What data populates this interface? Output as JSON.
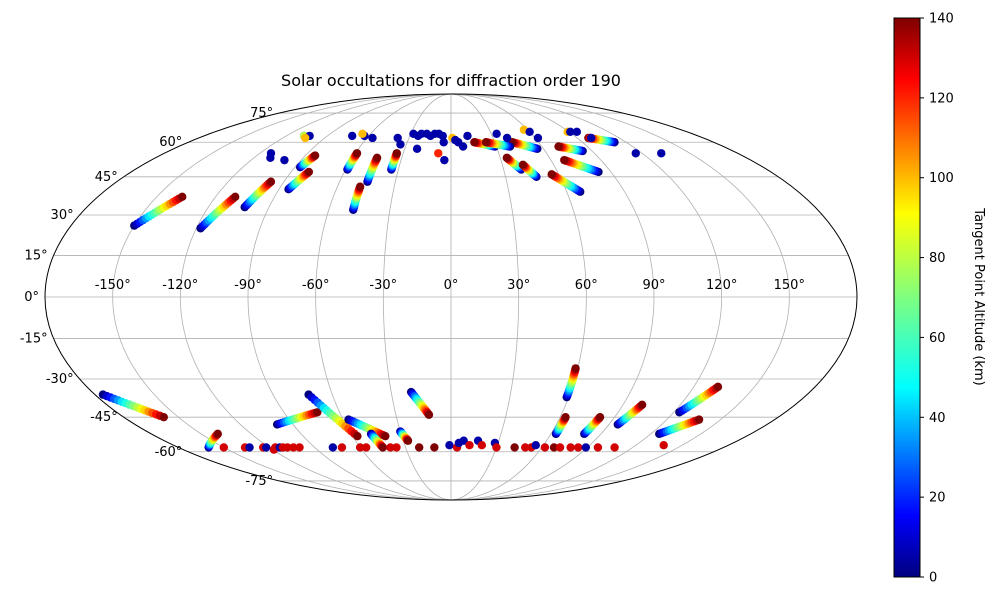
{
  "chart_data": {
    "type": "scatter",
    "projection": "mollweide",
    "title": "Solar occultations for diffraction order 190",
    "xlabel": "",
    "ylabel": "",
    "x_ticks": [
      -150,
      -120,
      -90,
      -60,
      -30,
      0,
      30,
      60,
      90,
      120,
      150
    ],
    "x_tick_labels": [
      "-150°",
      "-120°",
      "-90°",
      "-60°",
      "-30°",
      "0°",
      "30°",
      "60°",
      "90°",
      "120°",
      "150°"
    ],
    "y_ticks": [
      -75,
      -60,
      -45,
      -30,
      -15,
      0,
      15,
      30,
      45,
      60,
      75
    ],
    "y_tick_labels": [
      "-75°",
      "-60°",
      "-45°",
      "-30°",
      "-15°",
      "0°",
      "15°",
      "30°",
      "45°",
      "60°",
      "75°"
    ],
    "xlim": [
      -180,
      180
    ],
    "ylim": [
      -90,
      90
    ],
    "grid": true,
    "colormap": "jet",
    "colorbar": {
      "label": "Tangent Point Altitude (km)",
      "range": [
        0,
        140
      ],
      "ticks": [
        0,
        20,
        40,
        60,
        80,
        100,
        120,
        140
      ],
      "tick_labels": [
        "0",
        "20",
        "40",
        "60",
        "80",
        "100",
        "120",
        "140"
      ]
    },
    "tracks": [
      {
        "lon0": -150,
        "lat0": 26,
        "lon1": -137,
        "lat1": 37
      },
      {
        "lon0": -118,
        "lat0": 25,
        "lon1": -110,
        "lat1": 37
      },
      {
        "lon0": -102,
        "lat0": 33,
        "lon1": -97,
        "lat1": 43
      },
      {
        "lon0": -85,
        "lat0": 40,
        "lon1": -80,
        "lat1": 47
      },
      {
        "lon0": -87,
        "lat0": 49,
        "lon1": -84,
        "lat1": 54
      },
      {
        "lon0": -59,
        "lat0": 48,
        "lon1": -59,
        "lat1": 55
      },
      {
        "lon0": -48,
        "lat0": 32,
        "lon1": -48,
        "lat1": 41
      },
      {
        "lon0": -45,
        "lat0": 43,
        "lon1": -45,
        "lat1": 53
      },
      {
        "lon0": -34,
        "lat0": 48,
        "lon1": -34,
        "lat1": 55
      },
      {
        "lon0": 40,
        "lat0": 48,
        "lon1": 34,
        "lat1": 53
      },
      {
        "lon0": 47,
        "lat0": 45,
        "lon1": 42,
        "lat1": 50
      },
      {
        "lon0": 67,
        "lat0": 39,
        "lon1": 56,
        "lat1": 46
      },
      {
        "lon0": 83,
        "lat0": 47,
        "lon1": 68,
        "lat1": 52
      },
      {
        "lon0": 84,
        "lat0": 56,
        "lon1": 71,
        "lat1": 58
      },
      {
        "lon0": 56,
        "lat0": 57,
        "lon1": 42,
        "lat1": 60
      },
      {
        "lon0": 29,
        "lat0": 58,
        "lon1": 16,
        "lat1": 60
      },
      {
        "lon0": 39,
        "lat0": 58,
        "lon1": 24,
        "lat1": 60
      },
      {
        "lon0": 112,
        "lat0": 60,
        "lon1": 98,
        "lat1": 62
      },
      {
        "lon0": -176,
        "lat0": -36,
        "lon1": -158,
        "lat1": -45
      },
      {
        "lon0": -160,
        "lat0": -58,
        "lon1": -140,
        "lat1": -52
      },
      {
        "lon0": -99,
        "lat0": -48,
        "lon1": -72,
        "lat1": -43
      },
      {
        "lon0": -72,
        "lat0": -36,
        "lon1": -57,
        "lat1": -53
      },
      {
        "lon0": -57,
        "lat0": -46,
        "lon1": -40,
        "lat1": -53
      },
      {
        "lon0": -48,
        "lat0": -52,
        "lon1": -45,
        "lat1": -58
      },
      {
        "lon0": -30,
        "lat0": -51,
        "lon1": -27,
        "lat1": -55
      },
      {
        "lon0": -20,
        "lat0": -35,
        "lon1": -12,
        "lat1": -44
      },
      {
        "lon0": 59,
        "lat0": -37,
        "lon1": 59,
        "lat1": -26
      },
      {
        "lon0": 63,
        "lat0": -52,
        "lon1": 63,
        "lat1": -45
      },
      {
        "lon0": 80,
        "lat0": -52,
        "lon1": 82,
        "lat1": -45
      },
      {
        "lon0": 95,
        "lat0": -48,
        "lon1": 100,
        "lat1": -40
      },
      {
        "lon0": 123,
        "lat0": -43,
        "lon1": 132,
        "lat1": -33
      },
      {
        "lon0": 125,
        "lat0": -52,
        "lon1": 138,
        "lat1": -46
      }
    ],
    "points": [
      {
        "lon": -107,
        "lat": 63,
        "alt": 5
      },
      {
        "lon": -107,
        "lat": 63,
        "alt": 80
      },
      {
        "lon": -103,
        "lat": 63,
        "alt": 5
      },
      {
        "lon": -104,
        "lat": 62,
        "alt": 100
      },
      {
        "lon": -113,
        "lat": 55,
        "alt": 5
      },
      {
        "lon": -110,
        "lat": 53,
        "alt": 5
      },
      {
        "lon": -100,
        "lat": 52,
        "alt": 5
      },
      {
        "lon": -72,
        "lat": 63,
        "alt": 5
      },
      {
        "lon": -63,
        "lat": 63,
        "alt": 5
      },
      {
        "lon": -66,
        "lat": 64,
        "alt": 100
      },
      {
        "lon": -56,
        "lat": 62,
        "alt": 5
      },
      {
        "lon": -38,
        "lat": 62,
        "alt": 5
      },
      {
        "lon": -34,
        "lat": 59,
        "alt": 5
      },
      {
        "lon": -28,
        "lat": 64,
        "alt": 5
      },
      {
        "lon": -24,
        "lat": 63,
        "alt": 5
      },
      {
        "lon": -22,
        "lat": 64,
        "alt": 5
      },
      {
        "lon": -18,
        "lat": 64,
        "alt": 5
      },
      {
        "lon": -15,
        "lat": 63,
        "alt": 5
      },
      {
        "lon": -12,
        "lat": 64,
        "alt": 5
      },
      {
        "lon": -9,
        "lat": 64,
        "alt": 5
      },
      {
        "lon": -6,
        "lat": 63,
        "alt": 5
      },
      {
        "lon": -5,
        "lat": 60,
        "alt": 5
      },
      {
        "lon": -22,
        "lat": 57,
        "alt": 5
      },
      {
        "lon": -8,
        "lat": 55,
        "alt": 120
      },
      {
        "lon": -4,
        "lat": 52,
        "alt": 5
      },
      {
        "lon": 1,
        "lat": 62,
        "alt": 100
      },
      {
        "lon": 3,
        "lat": 61,
        "alt": 5
      },
      {
        "lon": 5,
        "lat": 60,
        "alt": 5
      },
      {
        "lon": 8,
        "lat": 58,
        "alt": 5
      },
      {
        "lon": 12,
        "lat": 63,
        "alt": 5
      },
      {
        "lon": 34,
        "lat": 64,
        "alt": 5
      },
      {
        "lon": 40,
        "lat": 62,
        "alt": 5
      },
      {
        "lon": 57,
        "lat": 66,
        "alt": 100
      },
      {
        "lon": 60,
        "lat": 65,
        "alt": 5
      },
      {
        "lon": 62,
        "lat": 62,
        "alt": 5
      },
      {
        "lon": 89,
        "lat": 65,
        "alt": 100
      },
      {
        "lon": 91,
        "lat": 65,
        "alt": 5
      },
      {
        "lon": 96,
        "lat": 65,
        "alt": 5
      },
      {
        "lon": 99,
        "lat": 62,
        "alt": 130
      },
      {
        "lon": 100,
        "lat": 62,
        "alt": 5
      },
      {
        "lon": 116,
        "lat": 55,
        "alt": 5
      },
      {
        "lon": 132,
        "lat": 55,
        "alt": 5
      },
      {
        "lon": -150,
        "lat": -58,
        "alt": 130
      },
      {
        "lon": -136,
        "lat": -58,
        "alt": 130
      },
      {
        "lon": -133,
        "lat": -58,
        "alt": 5
      },
      {
        "lon": -124,
        "lat": -58,
        "alt": 130
      },
      {
        "lon": -122,
        "lat": -58,
        "alt": 5
      },
      {
        "lon": -119,
        "lat": -59,
        "alt": 130
      },
      {
        "lon": -116,
        "lat": -58,
        "alt": 130
      },
      {
        "lon": -113,
        "lat": -58,
        "alt": 5
      },
      {
        "lon": -111,
        "lat": -58,
        "alt": 130
      },
      {
        "lon": -108,
        "lat": -58,
        "alt": 130
      },
      {
        "lon": -104,
        "lat": -58,
        "alt": 130
      },
      {
        "lon": -100,
        "lat": -58,
        "alt": 130
      },
      {
        "lon": -78,
        "lat": -58,
        "alt": 5
      },
      {
        "lon": -72,
        "lat": -58,
        "alt": 130
      },
      {
        "lon": -60,
        "lat": -58,
        "alt": 130
      },
      {
        "lon": -56,
        "lat": -58,
        "alt": 130
      },
      {
        "lon": -40,
        "lat": -58,
        "alt": 130
      },
      {
        "lon": -36,
        "lat": -58,
        "alt": 130
      },
      {
        "lon": -21,
        "lat": -58,
        "alt": 140
      },
      {
        "lon": -11,
        "lat": -58,
        "alt": 140
      },
      {
        "lon": -1,
        "lat": -57,
        "alt": 5
      },
      {
        "lon": 4,
        "lat": -58,
        "alt": 130
      },
      {
        "lon": 5,
        "lat": -56,
        "alt": 5
      },
      {
        "lon": 8,
        "lat": -55,
        "alt": 5
      },
      {
        "lon": 12,
        "lat": -57,
        "alt": 130
      },
      {
        "lon": 17,
        "lat": -55,
        "alt": 5
      },
      {
        "lon": 20,
        "lat": -57,
        "alt": 130
      },
      {
        "lon": 28,
        "lat": -56,
        "alt": 5
      },
      {
        "lon": 30,
        "lat": -58,
        "alt": 130
      },
      {
        "lon": 42,
        "lat": -58,
        "alt": 140
      },
      {
        "lon": 49,
        "lat": -58,
        "alt": 130
      },
      {
        "lon": 53,
        "lat": -58,
        "alt": 130
      },
      {
        "lon": 55,
        "lat": -57,
        "alt": 5
      },
      {
        "lon": 62,
        "lat": -58,
        "alt": 130
      },
      {
        "lon": 68,
        "lat": -58,
        "alt": 140
      },
      {
        "lon": 72,
        "lat": -58,
        "alt": 130
      },
      {
        "lon": 79,
        "lat": -58,
        "alt": 130
      },
      {
        "lon": 84,
        "lat": -58,
        "alt": 130
      },
      {
        "lon": 89,
        "lat": -58,
        "alt": 5
      },
      {
        "lon": 97,
        "lat": -58,
        "alt": 130
      },
      {
        "lon": 108,
        "lat": -58,
        "alt": 130
      },
      {
        "lon": 138,
        "lat": -57,
        "alt": 130
      }
    ]
  }
}
